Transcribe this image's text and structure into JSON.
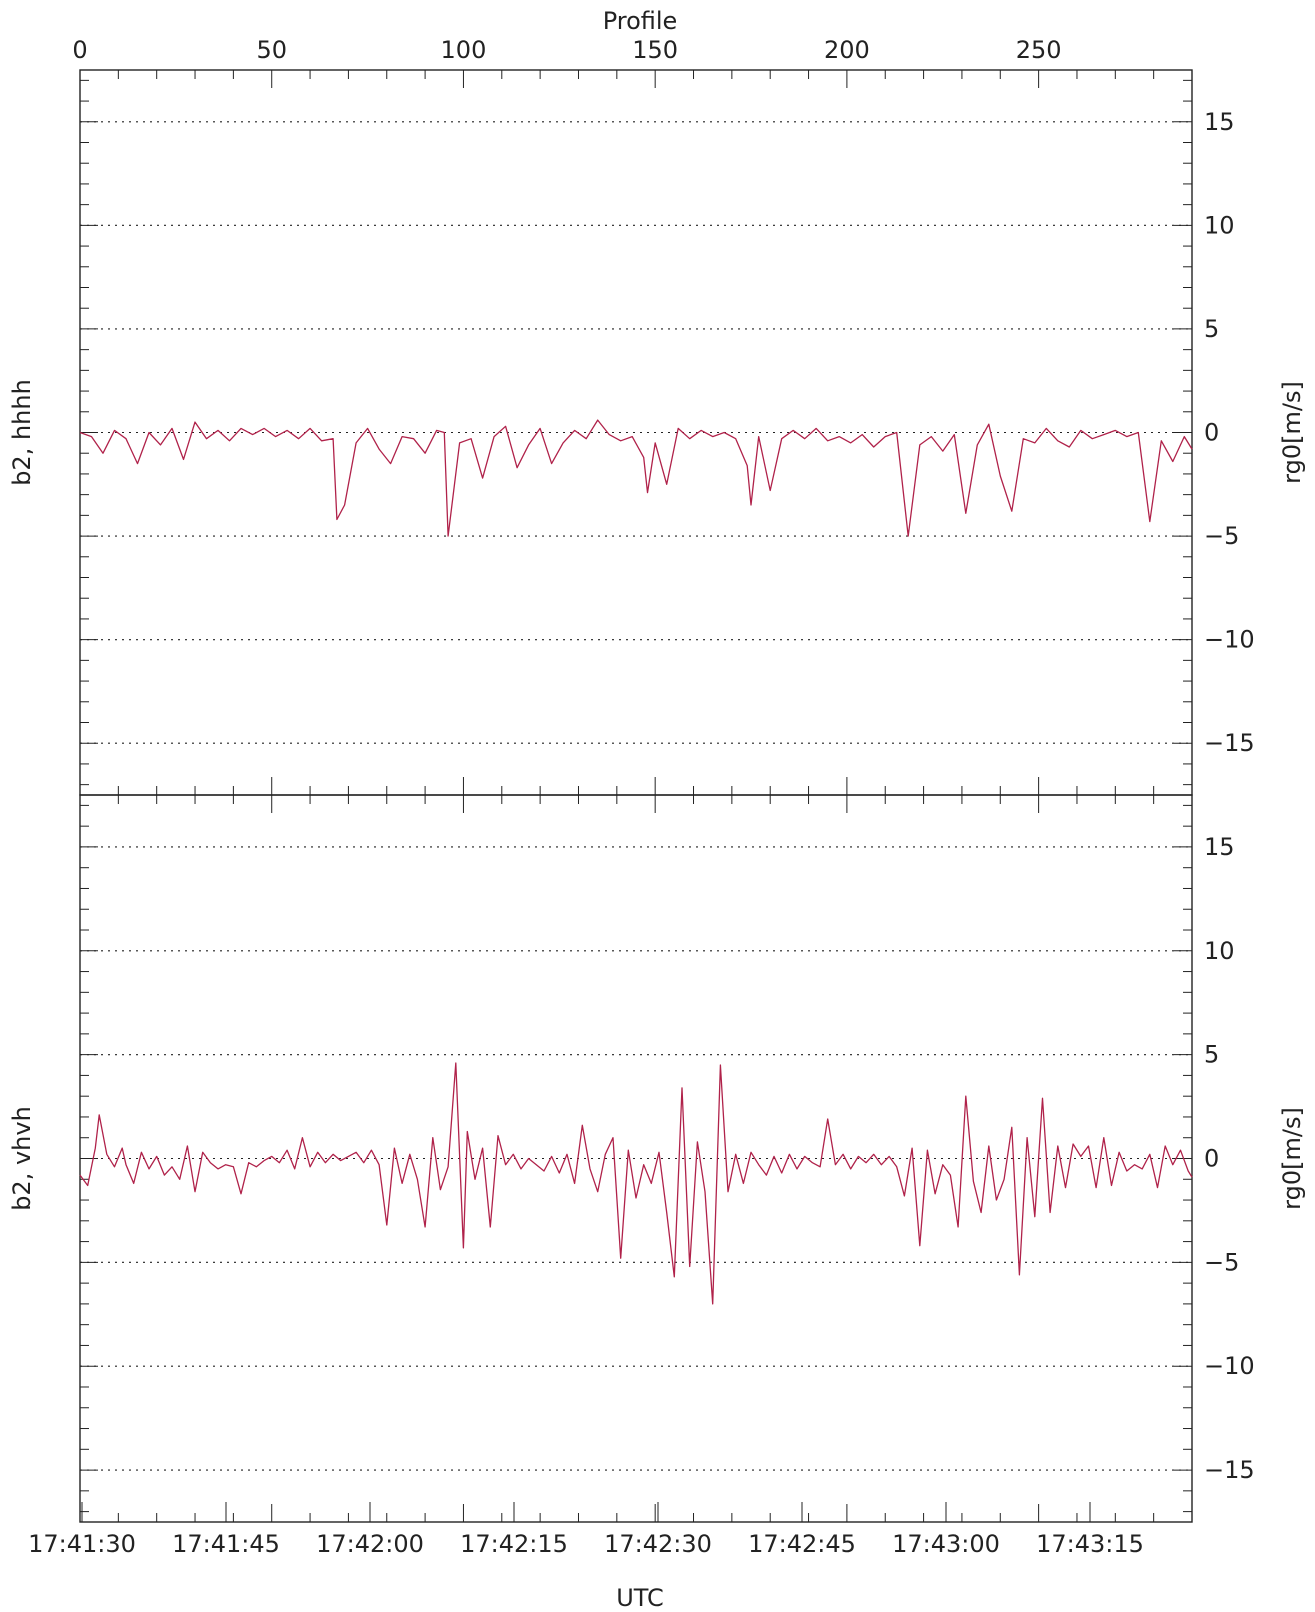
{
  "chart_data": {
    "type": "line",
    "top_axis": {
      "label": "Profile",
      "range": [
        0,
        290
      ],
      "ticks": [
        0,
        50,
        100,
        150,
        200,
        250
      ],
      "tick_labels": [
        "0",
        "50",
        "100",
        "150",
        "200",
        "250"
      ]
    },
    "bottom_axis": {
      "label": "UTC",
      "tick_labels": [
        "17:41:30",
        "17:41:45",
        "17:42:00",
        "17:42:15",
        "17:42:30",
        "17:42:45",
        "17:43:00",
        "17:43:15"
      ]
    },
    "y_axis": {
      "range": [
        -17.5,
        17.5
      ],
      "ticks": [
        15,
        10,
        5,
        0,
        -5,
        -10,
        -15
      ],
      "tick_labels": [
        "15",
        "10",
        "5",
        "0",
        "−5",
        "−10",
        "−15"
      ],
      "grid": "dotted"
    },
    "line_color": "#b0224a",
    "panels": [
      {
        "left_label": "b2, hhhh",
        "right_label": "rg0[m/s]",
        "x": [
          0,
          3,
          6,
          9,
          12,
          15,
          18,
          21,
          24,
          27,
          30,
          33,
          36,
          39,
          42,
          45,
          48,
          51,
          54,
          57,
          60,
          63,
          66,
          67,
          69,
          72,
          75,
          78,
          81,
          84,
          87,
          90,
          93,
          95,
          96,
          99,
          102,
          105,
          108,
          111,
          114,
          117,
          120,
          123,
          126,
          129,
          132,
          135,
          138,
          141,
          144,
          147,
          148,
          150,
          153,
          156,
          159,
          162,
          165,
          168,
          171,
          174,
          175,
          177,
          180,
          183,
          186,
          189,
          192,
          195,
          198,
          201,
          204,
          207,
          210,
          213,
          216,
          219,
          222,
          225,
          228,
          231,
          234,
          237,
          240,
          243,
          246,
          249,
          252,
          255,
          258,
          261,
          264,
          267,
          270,
          273,
          276,
          279,
          282,
          285,
          288,
          290
        ],
        "y": [
          0,
          -0.2,
          -1,
          0.1,
          -0.3,
          -1.5,
          0,
          -0.6,
          0.2,
          -1.3,
          0.5,
          -0.3,
          0.1,
          -0.4,
          0.2,
          -0.1,
          0.2,
          -0.2,
          0.1,
          -0.3,
          0.2,
          -0.4,
          -0.3,
          -4.2,
          -3.5,
          -0.5,
          0.2,
          -0.8,
          -1.5,
          -0.2,
          -0.3,
          -1,
          0.1,
          0,
          -5,
          -0.5,
          -0.3,
          -2.2,
          -0.2,
          0.3,
          -1.7,
          -0.6,
          0.2,
          -1.5,
          -0.5,
          0.1,
          -0.3,
          0.6,
          -0.1,
          -0.4,
          -0.2,
          -1.2,
          -2.9,
          -0.5,
          -2.5,
          0.2,
          -0.3,
          0.1,
          -0.2,
          0,
          -0.3,
          -1.6,
          -3.5,
          -0.2,
          -2.8,
          -0.3,
          0.1,
          -0.3,
          0.2,
          -0.4,
          -0.2,
          -0.5,
          -0.1,
          -0.7,
          -0.2,
          0,
          -5,
          -0.6,
          -0.2,
          -0.9,
          -0.1,
          -3.9,
          -0.6,
          0.4,
          -2.1,
          -3.8,
          -0.3,
          -0.5,
          0.2,
          -0.4,
          -0.7,
          0.1,
          -0.3,
          -0.1,
          0.1,
          -0.2,
          0,
          -4.3,
          -0.4,
          -1.4,
          -0.2,
          -0.8
        ],
        "zero_label": "0"
      },
      {
        "left_label": "b2, vhvh",
        "right_label": "rg0[m/s]",
        "x": [
          0,
          2,
          4,
          5,
          7,
          9,
          11,
          12,
          14,
          16,
          18,
          20,
          22,
          24,
          26,
          28,
          30,
          32,
          34,
          36,
          38,
          40,
          42,
          44,
          46,
          48,
          50,
          52,
          54,
          56,
          58,
          60,
          62,
          64,
          66,
          68,
          70,
          72,
          74,
          76,
          78,
          80,
          82,
          84,
          86,
          88,
          90,
          92,
          94,
          96,
          98,
          100,
          101,
          103,
          105,
          107,
          109,
          111,
          113,
          115,
          117,
          119,
          121,
          123,
          125,
          127,
          129,
          131,
          133,
          135,
          137,
          139,
          141,
          143,
          145,
          147,
          149,
          151,
          153,
          155,
          157,
          159,
          161,
          163,
          165,
          167,
          169,
          171,
          173,
          175,
          177,
          179,
          181,
          183,
          185,
          187,
          189,
          191,
          193,
          195,
          197,
          199,
          201,
          203,
          205,
          207,
          209,
          211,
          213,
          215,
          217,
          219,
          221,
          223,
          225,
          227,
          229,
          231,
          233,
          235,
          237,
          239,
          241,
          243,
          245,
          247,
          249,
          251,
          253,
          255,
          257,
          259,
          261,
          263,
          265,
          267,
          269,
          271,
          273,
          275,
          277,
          279,
          281,
          283,
          285,
          287,
          289,
          290
        ],
        "y": [
          -0.8,
          -1.3,
          0.5,
          2.1,
          0.2,
          -0.4,
          0.5,
          -0.3,
          -1.2,
          0.3,
          -0.5,
          0.1,
          -0.8,
          -0.4,
          -1.0,
          0.6,
          -1.6,
          0.3,
          -0.2,
          -0.5,
          -0.3,
          -0.4,
          -1.7,
          -0.2,
          -0.4,
          -0.1,
          0.1,
          -0.2,
          0.4,
          -0.5,
          1,
          -0.4,
          0.3,
          -0.2,
          0.2,
          -0.1,
          0.1,
          0.3,
          -0.2,
          0.4,
          -0.3,
          -3.2,
          0.5,
          -1.2,
          0.2,
          -1,
          -3.3,
          1,
          -1.5,
          -0.4,
          4.6,
          -4.3,
          1.3,
          -1.0,
          0.5,
          -3.3,
          1.1,
          -0.3,
          0.2,
          -0.5,
          0,
          -0.3,
          -0.6,
          0.1,
          -0.7,
          0.2,
          -1.2,
          1.6,
          -0.5,
          -1.6,
          0.2,
          1.0,
          -4.8,
          0.4,
          -1.9,
          -0.3,
          -1.2,
          0.3,
          -2.6,
          -5.7,
          3.4,
          -5.2,
          0.8,
          -1.6,
          -7.0,
          4.5,
          -1.6,
          0.2,
          -1.2,
          0.3,
          -0.3,
          -0.8,
          0.1,
          -0.7,
          0.2,
          -0.5,
          0.1,
          -0.2,
          -0.4,
          1.9,
          -0.3,
          0.2,
          -0.5,
          0.1,
          -0.2,
          0.2,
          -0.3,
          0.1,
          -0.4,
          -1.8,
          0.5,
          -4.2,
          0.4,
          -1.7,
          -0.3,
          -0.8,
          -3.3,
          3.0,
          -1.1,
          -2.6,
          0.6,
          -2.0,
          -1.0,
          1.5,
          -5.6,
          1.0,
          -2.8,
          2.9,
          -2.6,
          0.6,
          -1.4,
          0.7,
          0.1,
          0.6,
          -1.4,
          1.0,
          -1.3,
          0.3,
          -0.6,
          -0.3,
          -0.5,
          0.2,
          -1.4,
          0.6,
          -0.3,
          0.4,
          -0.6,
          -0.9
        ],
        "zero_label": "0"
      }
    ]
  }
}
